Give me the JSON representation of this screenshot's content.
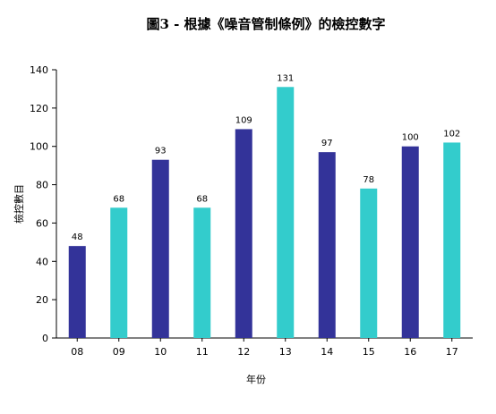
{
  "chart_data": {
    "type": "bar",
    "title": "圖3 - 根據《噪音管制條例》的檢控數字",
    "xlabel": "年份",
    "ylabel": "檢控數目",
    "categories": [
      "08",
      "09",
      "10",
      "11",
      "12",
      "13",
      "14",
      "15",
      "16",
      "17"
    ],
    "values": [
      48,
      68,
      93,
      68,
      109,
      131,
      97,
      78,
      100,
      102
    ],
    "bar_colors": [
      "#333399",
      "#33CCCC",
      "#333399",
      "#33CCCC",
      "#333399",
      "#33CCCC",
      "#333399",
      "#33CCCC",
      "#333399",
      "#33CCCC"
    ],
    "yticks": [
      "0",
      "20",
      "40",
      "60",
      "80",
      "100",
      "120",
      "140"
    ],
    "ylim": [
      0,
      140
    ],
    "grid": false,
    "legend": "none"
  }
}
